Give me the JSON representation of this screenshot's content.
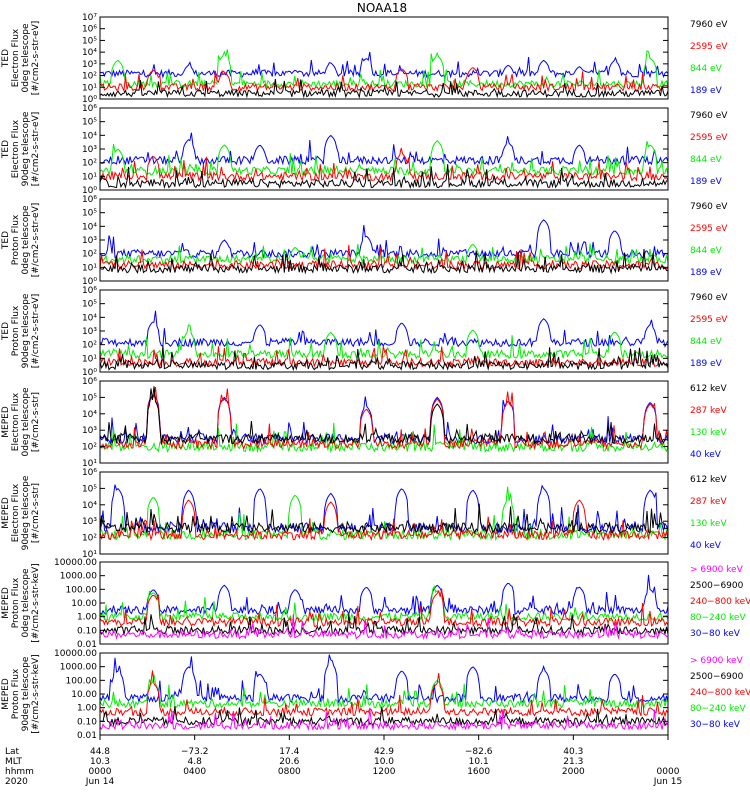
{
  "chart_data": {
    "type": "line",
    "title": "NOAA18",
    "colors": {
      "black": "#000000",
      "red": "#ff0000",
      "green": "#00ee00",
      "blue": "#0000ff",
      "magenta": "#ff00ff"
    },
    "panels": [
      {
        "ylabel": [
          "TED",
          "Electron Flux",
          "0deg telescope",
          "[#/cm2-s-str-eV]"
        ],
        "scale": "log",
        "ylim": [
          1,
          10000000
        ],
        "yticks": [
          "10⁰",
          "10¹",
          "10²",
          "10³",
          "10⁴",
          "10⁵",
          "10⁶",
          "10⁷"
        ],
        "legend": [
          {
            "text": "7960 eV",
            "color": "black"
          },
          {
            "text": "2595 eV",
            "color": "red"
          },
          {
            "text": "844 eV",
            "color": "green"
          },
          {
            "text": "189 eV",
            "color": "blue"
          }
        ],
        "series": [
          {
            "name": "189 eV",
            "color": "blue",
            "baseline": 150,
            "spikes": [
              [
                2,
                800
              ],
              [
                5,
                300
              ],
              [
                6,
                1200
              ],
              [
                7,
                3000
              ],
              [
                11,
                800
              ],
              [
                12,
                2000
              ],
              [
                13,
                600
              ],
              [
                14,
                2000
              ]
            ]
          },
          {
            "name": "844 eV",
            "color": "green",
            "baseline": 20,
            "spikes": [
              [
                0,
                2000
              ],
              [
                3,
                6000
              ],
              [
                9,
                5000
              ],
              [
                15,
                3000
              ]
            ]
          },
          {
            "name": "2595 eV",
            "color": "red",
            "baseline": 10,
            "spikes": [
              [
                1,
                300
              ],
              [
                3,
                200
              ],
              [
                8,
                400
              ],
              [
                10,
                500
              ]
            ]
          },
          {
            "name": "7960 eV",
            "color": "black",
            "baseline": 3,
            "spikes": []
          }
        ]
      },
      {
        "ylabel": [
          "TED",
          "Electron Flux",
          "90deg telescope",
          "[#/cm2-s-str-eV]"
        ],
        "scale": "log",
        "ylim": [
          1,
          1000000
        ],
        "yticks": [
          "10⁰",
          "10¹",
          "10²",
          "10³",
          "10⁴",
          "10⁵",
          "10⁶"
        ],
        "legend": [
          {
            "text": "7960 eV",
            "color": "black"
          },
          {
            "text": "2595 eV",
            "color": "red"
          },
          {
            "text": "844 eV",
            "color": "green"
          },
          {
            "text": "189 eV",
            "color": "blue"
          }
        ],
        "series": [
          {
            "name": "189 eV",
            "color": "blue",
            "baseline": 150,
            "spikes": [
              [
                2,
                5000
              ],
              [
                4,
                2000
              ],
              [
                6,
                10000
              ],
              [
                11,
                3000
              ],
              [
                13,
                2000
              ]
            ]
          },
          {
            "name": "844 eV",
            "color": "green",
            "baseline": 25,
            "spikes": [
              [
                0,
                1000
              ],
              [
                3,
                2000
              ],
              [
                9,
                4000
              ],
              [
                15,
                2000
              ]
            ]
          },
          {
            "name": "2595 eV",
            "color": "red",
            "baseline": 10,
            "spikes": [
              [
                1,
                300
              ],
              [
                8,
                500
              ]
            ]
          },
          {
            "name": "7960 eV",
            "color": "black",
            "baseline": 3,
            "spikes": []
          }
        ]
      },
      {
        "ylabel": [
          "TED",
          "Proton Flux",
          "0deg telescope",
          "[#/cm2-s-str-eV]"
        ],
        "scale": "log",
        "ylim": [
          1,
          1000000
        ],
        "yticks": [
          "10⁰",
          "10¹",
          "10²",
          "10³",
          "10⁴",
          "10⁵",
          "10⁶"
        ],
        "legend": [
          {
            "text": "7960 eV",
            "color": "black"
          },
          {
            "text": "2595 eV",
            "color": "red"
          },
          {
            "text": "844 eV",
            "color": "green"
          },
          {
            "text": "189 eV",
            "color": "blue"
          }
        ],
        "series": [
          {
            "name": "189 eV",
            "color": "blue",
            "baseline": 100,
            "spikes": [
              [
                3,
                1000
              ],
              [
                7,
                2000
              ],
              [
                12,
                30000
              ],
              [
                14,
                5000
              ]
            ]
          },
          {
            "name": "844 eV",
            "color": "green",
            "baseline": 40,
            "spikes": [
              [
                5,
                300
              ],
              [
                10,
                500
              ]
            ]
          },
          {
            "name": "2595 eV",
            "color": "red",
            "baseline": 15,
            "spikes": []
          },
          {
            "name": "7960 eV",
            "color": "black",
            "baseline": 8,
            "spikes": []
          }
        ]
      },
      {
        "ylabel": [
          "TED",
          "Proton Flux",
          "90deg telescope",
          "[#/cm2-s-str-eV]"
        ],
        "scale": "log",
        "ylim": [
          1,
          1000000
        ],
        "yticks": [
          "10⁰",
          "10¹",
          "10²",
          "10³",
          "10⁴",
          "10⁵",
          "10⁶"
        ],
        "legend": [
          {
            "text": "7960 eV",
            "color": "black"
          },
          {
            "text": "2595 eV",
            "color": "red"
          },
          {
            "text": "844 eV",
            "color": "green"
          },
          {
            "text": "189 eV",
            "color": "blue"
          }
        ],
        "series": [
          {
            "name": "189 eV",
            "color": "blue",
            "baseline": 150,
            "spikes": [
              [
                1,
                5000
              ],
              [
                4,
                3000
              ],
              [
                8,
                4000
              ],
              [
                12,
                8000
              ],
              [
                15,
                3000
              ]
            ]
          },
          {
            "name": "844 eV",
            "color": "green",
            "baseline": 20,
            "spikes": [
              [
                2,
                1000
              ],
              [
                6,
                800
              ],
              [
                10,
                1200
              ],
              [
                14,
                900
              ]
            ]
          },
          {
            "name": "2595 eV",
            "color": "red",
            "baseline": 5,
            "spikes": []
          },
          {
            "name": "7960 eV",
            "color": "black",
            "baseline": 3,
            "spikes": []
          }
        ]
      },
      {
        "ylabel": [
          "MEPED",
          "Electron Flux",
          "0deg telescope",
          "[#/cm2-s-str]"
        ],
        "scale": "log",
        "ylim": [
          10,
          1000000
        ],
        "yticks": [
          "10¹",
          "10²",
          "10³",
          "10⁴",
          "10⁵",
          "10⁶"
        ],
        "legend": [
          {
            "text": "612 keV",
            "color": "black"
          },
          {
            "text": "287 keV",
            "color": "red"
          },
          {
            "text": "130 keV",
            "color": "green"
          },
          {
            "text": "40 keV",
            "color": "blue"
          }
        ],
        "series": [
          {
            "name": "40 keV",
            "color": "blue",
            "baseline": 300,
            "spikes": [
              [
                1,
                150000
              ],
              [
                3,
                100000
              ],
              [
                7,
                30000
              ],
              [
                9,
                100000
              ],
              [
                11,
                60000
              ],
              [
                15,
                50000
              ]
            ]
          },
          {
            "name": "130 keV",
            "color": "green",
            "baseline": 100,
            "spikes": []
          },
          {
            "name": "287 keV",
            "color": "red",
            "baseline": 150,
            "spikes": [
              [
                1,
                120000
              ],
              [
                3,
                80000
              ],
              [
                7,
                20000
              ],
              [
                9,
                80000
              ],
              [
                11,
                50000
              ],
              [
                15,
                40000
              ]
            ]
          },
          {
            "name": "612 keV",
            "color": "black",
            "baseline": 300,
            "spikes": [
              [
                1,
                80000
              ],
              [
                9,
                40000
              ]
            ]
          }
        ]
      },
      {
        "ylabel": [
          "MEPED",
          "Electron Flux",
          "90deg telescope",
          "[#/cm2-s-str]"
        ],
        "scale": "log",
        "ylim": [
          10,
          1000000
        ],
        "yticks": [
          "10¹",
          "10²",
          "10³",
          "10⁴",
          "10⁵",
          "10⁶"
        ],
        "legend": [
          {
            "text": "612 keV",
            "color": "black"
          },
          {
            "text": "287 keV",
            "color": "red"
          },
          {
            "text": "130 keV",
            "color": "green"
          },
          {
            "text": "40 keV",
            "color": "blue"
          }
        ],
        "series": [
          {
            "name": "40 keV",
            "color": "blue",
            "baseline": 400,
            "spikes": [
              [
                0,
                100000
              ],
              [
                2,
                80000
              ],
              [
                4,
                100000
              ],
              [
                6,
                50000
              ],
              [
                8,
                100000
              ],
              [
                10,
                80000
              ],
              [
                12,
                100000
              ],
              [
                15,
                80000
              ]
            ]
          },
          {
            "name": "130 keV",
            "color": "green",
            "baseline": 150,
            "spikes": [
              [
                1,
                30000
              ],
              [
                5,
                40000
              ],
              [
                11,
                20000
              ]
            ]
          },
          {
            "name": "287 keV",
            "color": "red",
            "baseline": 150,
            "spikes": [
              [
                2,
                20000
              ],
              [
                6,
                15000
              ],
              [
                13,
                20000
              ]
            ]
          },
          {
            "name": "612 keV",
            "color": "black",
            "baseline": 400,
            "spikes": []
          }
        ]
      },
      {
        "ylabel": [
          "MEPED",
          "Proton Flux",
          "0deg telescope",
          "[#/cm2-s-str-keV]"
        ],
        "scale": "log",
        "ylim": [
          0.01,
          10000
        ],
        "yticks": [
          "0.01",
          "0.10",
          "1.00",
          "10.00",
          "100.00",
          "1000.00",
          "10000.00"
        ],
        "legend": [
          {
            "text": "> 6900 keV",
            "color": "magenta"
          },
          {
            "text": "2500−6900",
            "color": "black"
          },
          {
            "text": "240−800 keV",
            "color": "red"
          },
          {
            "text": "80−240 keV",
            "color": "green"
          },
          {
            "text": "30−80 keV",
            "color": "blue"
          }
        ],
        "series": [
          {
            "name": "30−80 keV",
            "color": "blue",
            "baseline": 3,
            "spikes": [
              [
                1,
                100
              ],
              [
                3,
                200
              ],
              [
                5,
                100
              ],
              [
                7,
                150
              ],
              [
                9,
                200
              ],
              [
                11,
                300
              ],
              [
                13,
                150
              ],
              [
                15,
                100
              ]
            ]
          },
          {
            "name": "80−240 keV",
            "color": "green",
            "baseline": 1,
            "spikes": [
              [
                1,
                60
              ],
              [
                9,
                80
              ]
            ]
          },
          {
            "name": "240−800 keV",
            "color": "red",
            "baseline": 0.4,
            "spikes": [
              [
                1,
                40
              ],
              [
                9,
                50
              ]
            ]
          },
          {
            "name": "2500−6900",
            "color": "black",
            "baseline": 0.1,
            "spikes": []
          },
          {
            "name": "> 6900 keV",
            "color": "magenta",
            "baseline": 0.05,
            "spikes": []
          }
        ]
      },
      {
        "ylabel": [
          "MEPED",
          "Proton Flux",
          "90deg telescope",
          "[#/cm2-s-str-keV]"
        ],
        "scale": "log",
        "ylim": [
          0.01,
          10000
        ],
        "yticks": [
          "0.01",
          "0.10",
          "1.00",
          "10.00",
          "100.00",
          "1000.00",
          "10000.00"
        ],
        "legend": [
          {
            "text": "> 6900 keV",
            "color": "magenta"
          },
          {
            "text": "2500−6900",
            "color": "black"
          },
          {
            "text": "240−800 keV",
            "color": "red"
          },
          {
            "text": "80−240 keV",
            "color": "green"
          },
          {
            "text": "30−80 keV",
            "color": "blue"
          }
        ],
        "series": [
          {
            "name": "30−80 keV",
            "color": "blue",
            "baseline": 5,
            "spikes": [
              [
                0,
                500
              ],
              [
                2,
                1000
              ],
              [
                4,
                300
              ],
              [
                6,
                2000
              ],
              [
                8,
                500
              ],
              [
                10,
                1000
              ],
              [
                12,
                600
              ],
              [
                14,
                300
              ]
            ]
          },
          {
            "name": "80−240 keV",
            "color": "green",
            "baseline": 2,
            "spikes": [
              [
                1,
                80
              ],
              [
                9,
                100
              ]
            ]
          },
          {
            "name": "240−800 keV",
            "color": "red",
            "baseline": 0.5,
            "spikes": [
              [
                1,
                60
              ],
              [
                9,
                60
              ]
            ]
          },
          {
            "name": "2500−6900",
            "color": "black",
            "baseline": 0.1,
            "spikes": []
          },
          {
            "name": "> 6900 keV",
            "color": "magenta",
            "baseline": 0.05,
            "spikes": []
          }
        ]
      }
    ],
    "x_axis": {
      "row_labels": [
        "Lat",
        "MLT",
        "hhmm",
        "2020"
      ],
      "ticks": [
        {
          "lat": "44.8",
          "mlt": "10.3",
          "hhmm": "0000",
          "date": "Jun 14"
        },
        {
          "lat": "−73.2",
          "mlt": "4.8",
          "hhmm": "0400",
          "date": ""
        },
        {
          "lat": "17.4",
          "mlt": "20.6",
          "hhmm": "0800",
          "date": ""
        },
        {
          "lat": "42.9",
          "mlt": "10.0",
          "hhmm": "1200",
          "date": ""
        },
        {
          "lat": "−82.6",
          "mlt": "10.1",
          "hhmm": "1600",
          "date": ""
        },
        {
          "lat": "40.3",
          "mlt": "21.3",
          "hhmm": "2000",
          "date": ""
        },
        {
          "lat": "",
          "mlt": "",
          "hhmm": "0000",
          "date": "Jun 15"
        }
      ]
    }
  }
}
